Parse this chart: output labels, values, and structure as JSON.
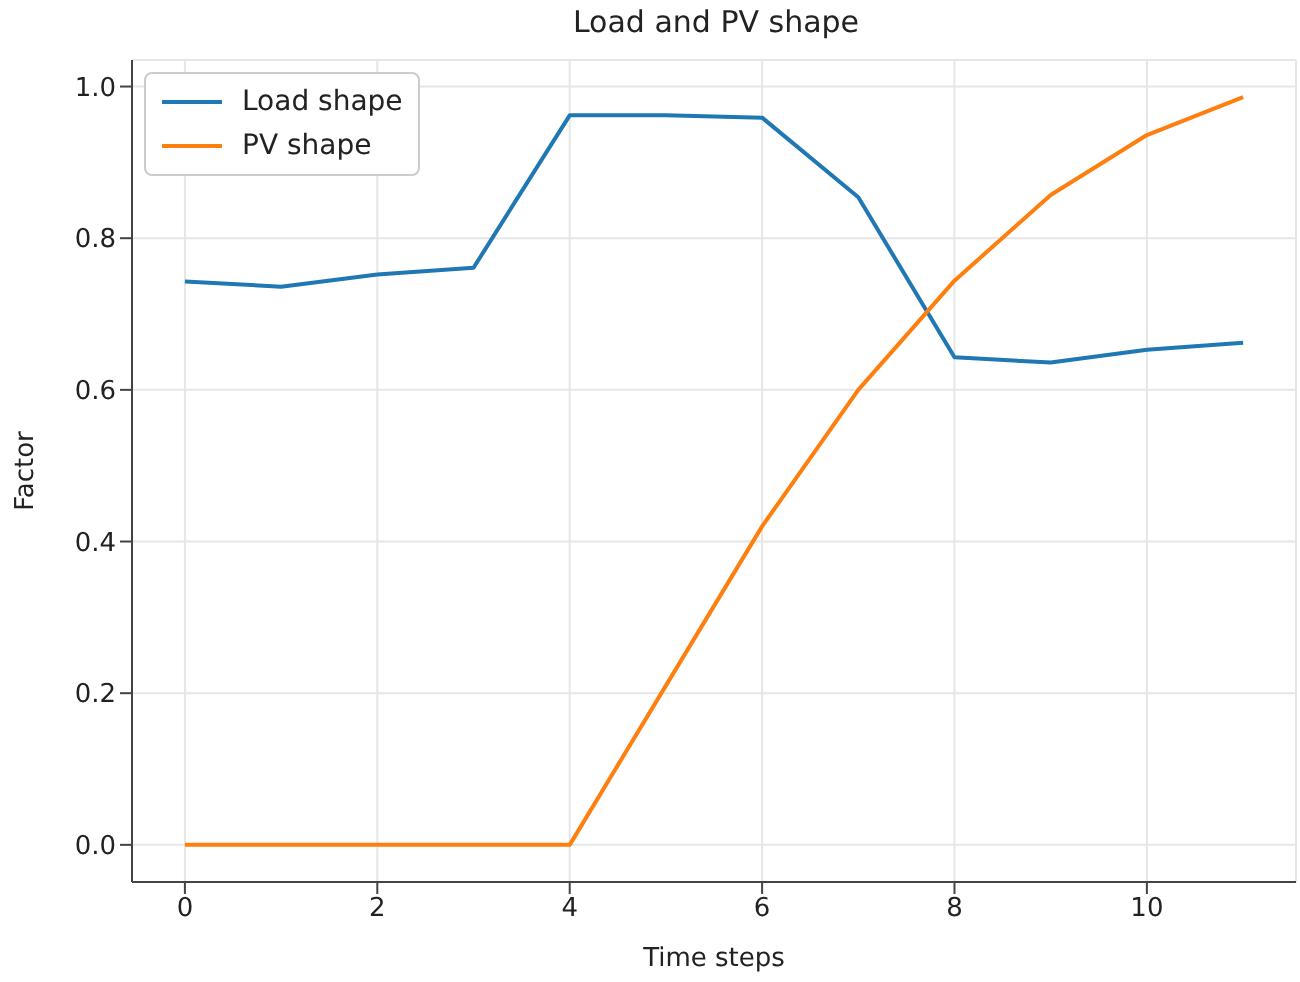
{
  "chart_data": {
    "type": "line",
    "title": "Load and PV shape",
    "xlabel": "Time steps",
    "ylabel": "Factor",
    "x": [
      0,
      1,
      2,
      3,
      4,
      5,
      6,
      7,
      8,
      9,
      10,
      11
    ],
    "series": [
      {
        "name": "Load shape",
        "color": "#1f77b4",
        "values": [
          0.743,
          0.736,
          0.752,
          0.761,
          0.962,
          0.962,
          0.959,
          0.854,
          0.643,
          0.636,
          0.653,
          0.662
        ]
      },
      {
        "name": "PV shape",
        "color": "#ff7f0e",
        "values": [
          0,
          0,
          0,
          0,
          0,
          0.21,
          0.42,
          0.6,
          0.744,
          0.857,
          0.936,
          0.986
        ]
      }
    ],
    "xlim": [
      -0.55,
      11.55
    ],
    "xticks": [
      0,
      2,
      4,
      6,
      8,
      10
    ],
    "ylim": [
      -0.049,
      1.035
    ],
    "yticks": [
      {
        "value": 0,
        "label": "0.0"
      },
      0.2,
      0.4,
      0.6,
      0.8,
      {
        "value": 1,
        "label": "1.0"
      }
    ],
    "grid": true,
    "legend": "top left",
    "marker": "none",
    "line_style": "solid"
  }
}
